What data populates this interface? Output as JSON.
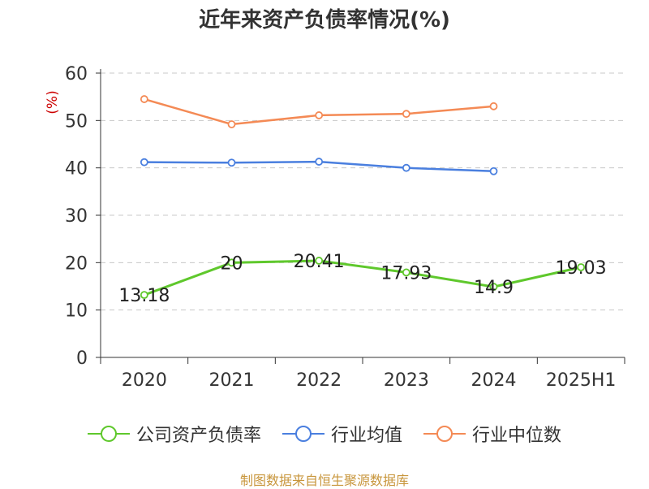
{
  "chart_data": {
    "type": "line",
    "title": "近年来资产负债率情况(%)",
    "ylabel": "(%)",
    "ylim": [
      0,
      60
    ],
    "yticks": [
      0,
      10,
      20,
      30,
      40,
      50,
      60
    ],
    "categories": [
      "2020",
      "2021",
      "2022",
      "2023",
      "2024",
      "2025H1"
    ],
    "grid": true,
    "legend_position": "bottom",
    "series": [
      {
        "name": "公司资产负债率",
        "color": "#5fc82c",
        "values": [
          13.18,
          20,
          20.41,
          17.93,
          14.9,
          19.03
        ],
        "labels": [
          "13.18",
          "20",
          "20.41",
          "17.93",
          "14.9",
          "19.03"
        ]
      },
      {
        "name": "行业均值",
        "color": "#4a7fdf",
        "values": [
          41.2,
          41.1,
          41.3,
          40.0,
          39.3,
          null
        ]
      },
      {
        "name": "行业中位数",
        "color": "#f48a55",
        "values": [
          54.5,
          49.2,
          51.1,
          51.4,
          53.0,
          null
        ]
      }
    ]
  },
  "source": {
    "text": "制图数据来自恒生聚源数据库",
    "color": "#c8963c"
  },
  "axis_label_color": "#cc0000"
}
